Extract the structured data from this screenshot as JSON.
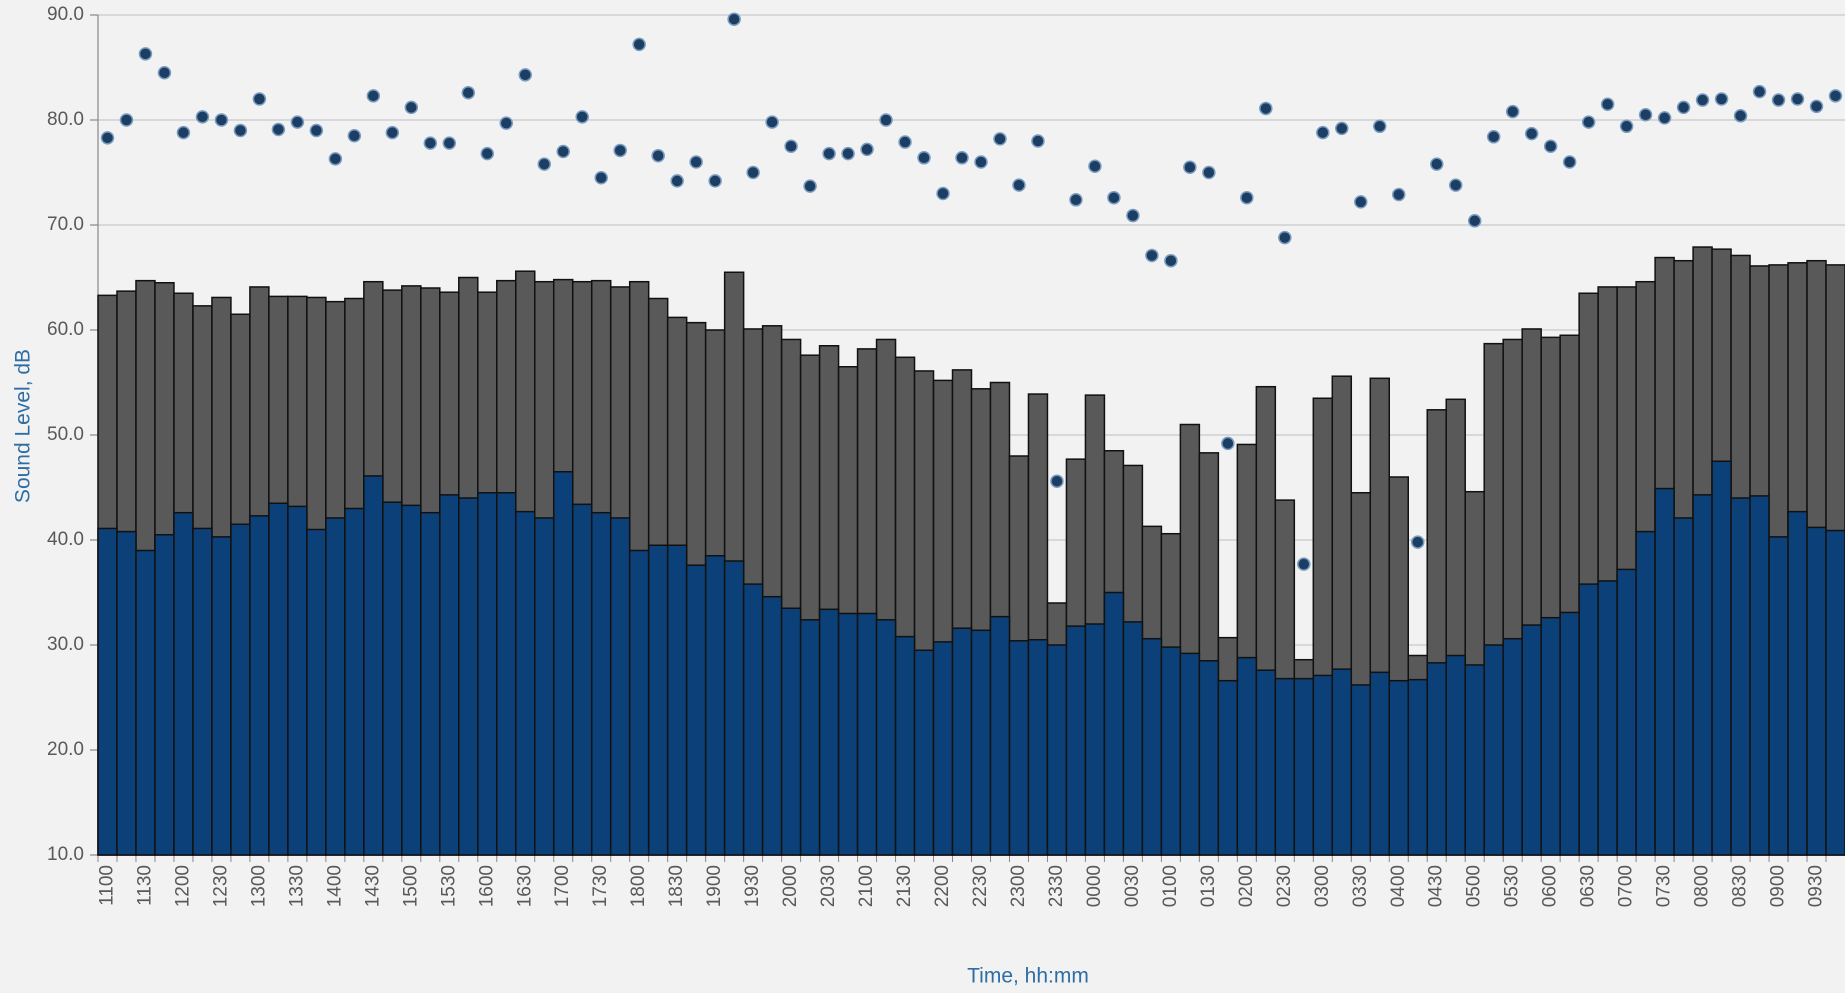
{
  "chart_data": {
    "type": "bar",
    "x_label": "Time, hh:mm",
    "y_label": "Sound Level, dB",
    "ylim": [
      10,
      90
    ],
    "yticks": [
      {
        "value": 10,
        "label": "10.0"
      },
      {
        "value": 20,
        "label": "20.0"
      },
      {
        "value": 30,
        "label": "30.0"
      },
      {
        "value": 40,
        "label": "40.0"
      },
      {
        "value": 50,
        "label": "50.0"
      },
      {
        "value": 60,
        "label": "60.0"
      },
      {
        "value": 70,
        "label": "70.0"
      },
      {
        "value": 80,
        "label": "80.0"
      },
      {
        "value": 90,
        "label": "90.0"
      }
    ],
    "grid": true,
    "categories": [
      "1100",
      null,
      "1130",
      null,
      "1200",
      null,
      "1230",
      null,
      "1300",
      null,
      "1330",
      null,
      "1400",
      null,
      "1430",
      null,
      "1500",
      null,
      "1530",
      null,
      "1600",
      null,
      "1630",
      null,
      "1700",
      null,
      "1730",
      null,
      "1800",
      null,
      "1830",
      null,
      "1900",
      null,
      "1930",
      null,
      "2000",
      null,
      "2030",
      null,
      "2100",
      null,
      "2130",
      null,
      "2200",
      null,
      "2230",
      null,
      "2300",
      null,
      "2330",
      null,
      "0000",
      null,
      "0030",
      null,
      "0100",
      null,
      "0130",
      null,
      "0200",
      null,
      "0230",
      null,
      "0300",
      null,
      "0330",
      null,
      "0400",
      null,
      "0430",
      null,
      "0500",
      null,
      "0530",
      null,
      "0600",
      null,
      "0630",
      null,
      "0700",
      null,
      "0730",
      null,
      "0800",
      null,
      "0830",
      null,
      "0900",
      null,
      "0930",
      null
    ],
    "series": [
      {
        "type": "bar",
        "color": "#595959",
        "values": [
          63.3,
          63.7,
          64.7,
          64.5,
          63.5,
          62.3,
          63.1,
          61.5,
          64.1,
          63.2,
          63.2,
          63.1,
          62.7,
          63.0,
          64.6,
          63.8,
          64.2,
          64.0,
          63.6,
          65.0,
          63.6,
          64.7,
          65.6,
          64.6,
          64.8,
          64.6,
          64.7,
          64.1,
          64.6,
          63.0,
          61.2,
          60.7,
          60.0,
          65.5,
          60.1,
          60.4,
          59.1,
          57.6,
          58.5,
          56.5,
          58.2,
          59.1,
          57.4,
          56.1,
          55.2,
          56.2,
          54.4,
          55.0,
          48.0,
          53.9,
          34.0,
          47.7,
          53.8,
          48.5,
          47.1,
          41.3,
          40.6,
          51.0,
          48.3,
          30.7,
          49.1,
          54.6,
          43.8,
          28.6,
          53.5,
          55.6,
          44.5,
          55.4,
          46.0,
          29.0,
          52.4,
          53.4,
          44.6,
          58.7,
          59.1,
          60.1,
          59.3,
          59.5,
          63.5,
          64.1,
          64.1,
          64.6,
          66.9,
          66.6,
          67.9,
          67.7,
          67.1,
          66.1,
          66.2,
          66.4,
          66.6,
          66.2
        ]
      },
      {
        "type": "bar",
        "color": "#0b4178",
        "values": [
          41.1,
          40.8,
          39.0,
          40.5,
          42.6,
          41.1,
          40.3,
          41.5,
          42.3,
          43.5,
          43.2,
          41.0,
          42.1,
          43.0,
          46.1,
          43.6,
          43.3,
          42.6,
          44.3,
          44.0,
          44.5,
          44.5,
          42.7,
          42.1,
          46.5,
          43.4,
          42.6,
          42.1,
          39.0,
          39.5,
          39.5,
          37.6,
          38.5,
          38.0,
          35.8,
          34.6,
          33.5,
          32.4,
          33.4,
          33.0,
          33.0,
          32.4,
          30.8,
          29.5,
          30.3,
          31.6,
          31.4,
          32.7,
          30.4,
          30.5,
          30.0,
          31.8,
          32.0,
          35.0,
          32.2,
          30.6,
          29.8,
          29.2,
          28.5,
          26.6,
          28.8,
          27.6,
          26.8,
          26.8,
          27.1,
          27.7,
          26.2,
          27.4,
          26.6,
          26.7,
          28.3,
          29.0,
          28.1,
          30.0,
          30.6,
          31.9,
          32.6,
          33.1,
          35.8,
          36.1,
          37.2,
          40.8,
          44.9,
          42.1,
          44.3,
          47.5,
          44.0,
          44.2,
          40.3,
          42.7,
          41.2,
          40.9
        ]
      },
      {
        "type": "scatter",
        "color": "#1c3e63",
        "values": [
          78.3,
          80.0,
          86.3,
          84.5,
          78.8,
          80.3,
          80.0,
          79.0,
          82.0,
          79.1,
          79.8,
          79.0,
          76.3,
          78.5,
          82.3,
          78.8,
          81.2,
          77.8,
          77.8,
          82.6,
          76.8,
          79.7,
          84.3,
          75.8,
          77.0,
          80.3,
          74.5,
          77.1,
          87.2,
          76.6,
          74.2,
          76.0,
          74.2,
          89.6,
          75.0,
          79.8,
          77.5,
          73.7,
          76.8,
          76.8,
          77.2,
          80.0,
          77.9,
          76.4,
          73.0,
          76.4,
          76.0,
          78.2,
          73.8,
          78.0,
          45.6,
          72.4,
          75.6,
          72.6,
          70.9,
          67.1,
          66.6,
          75.5,
          75.0,
          49.2,
          72.6,
          81.1,
          68.8,
          37.7,
          78.8,
          79.2,
          72.2,
          79.4,
          72.9,
          39.8,
          75.8,
          73.8,
          70.4,
          78.4,
          80.8,
          78.7,
          77.5,
          76.0,
          79.8,
          81.5,
          79.4,
          80.5,
          80.2,
          81.2,
          81.9,
          82.0,
          80.4,
          82.7,
          81.9,
          82.0,
          81.3,
          82.3
        ]
      }
    ]
  }
}
